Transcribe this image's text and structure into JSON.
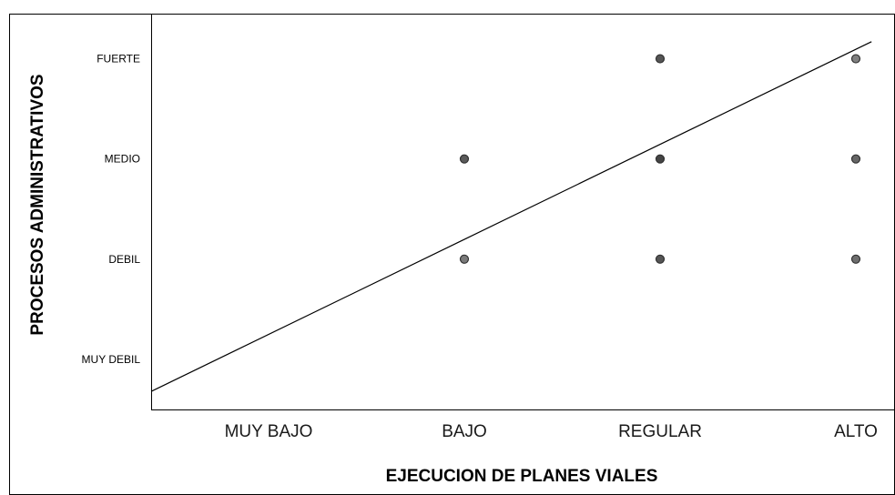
{
  "chart_data": {
    "type": "scatter",
    "title": "",
    "xlabel": "EJECUCION DE PLANES VIALES",
    "ylabel": "PROCESOS ADMINISTRATIVOS",
    "x_categories": [
      "MUY BAJO",
      "BAJO",
      "REGULAR",
      "ALTO"
    ],
    "y_categories": [
      "MUY DEBIL",
      "DEBIL",
      "MEDIO",
      "FUERTE"
    ],
    "points": [
      {
        "x": "BAJO",
        "y": "MEDIO",
        "color": "#5a5a5a"
      },
      {
        "x": "BAJO",
        "y": "DEBIL",
        "color": "#7a7a7a"
      },
      {
        "x": "REGULAR",
        "y": "FUERTE",
        "color": "#555555"
      },
      {
        "x": "REGULAR",
        "y": "MEDIO",
        "color": "#444444"
      },
      {
        "x": "REGULAR",
        "y": "DEBIL",
        "color": "#555555"
      },
      {
        "x": "ALTO",
        "y": "FUERTE",
        "color": "#808080"
      },
      {
        "x": "ALTO",
        "y": "MEDIO",
        "color": "#666666"
      },
      {
        "x": "ALTO",
        "y": "DEBIL",
        "color": "#6e6e6e"
      }
    ],
    "fit_line": {
      "x": [
        0.4,
        4.08
      ],
      "y": [
        0.68,
        4.17
      ]
    },
    "xlim": [
      0.4,
      4.2
    ],
    "ylim": [
      0.5,
      4.45
    ],
    "grid": false,
    "legend": "none"
  }
}
